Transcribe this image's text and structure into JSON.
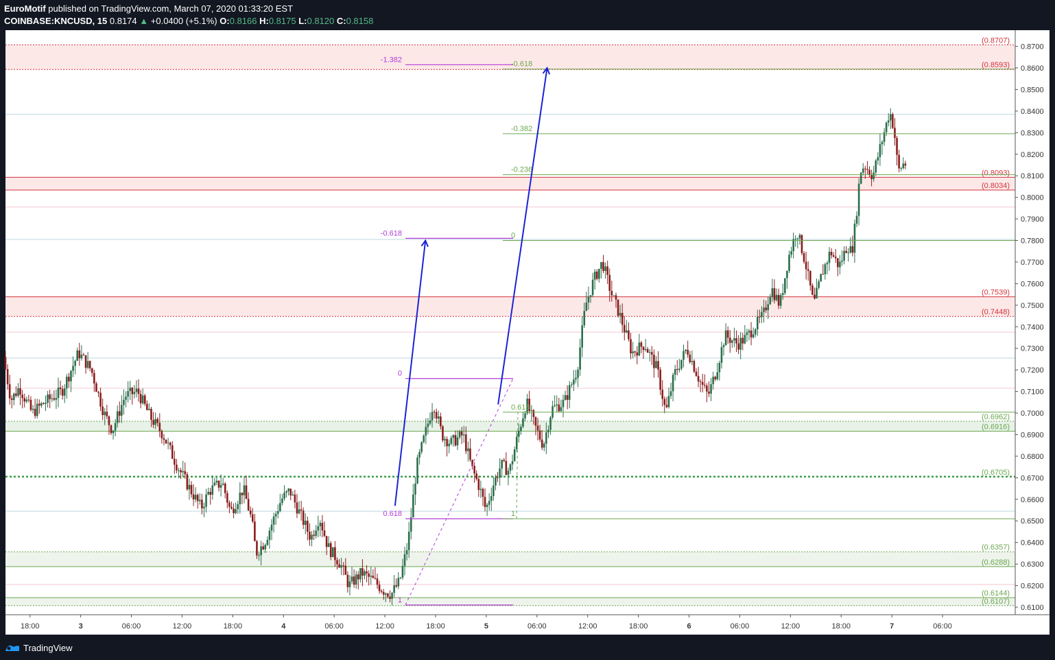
{
  "header": {
    "publisher": "EuroMotif",
    "published_text": "published on TradingView.com, March 07, 2020 01:33:20 EST",
    "symbol": "COINBASE:KNCUSD, 15",
    "last": "0.8174",
    "change_arrow": "▲",
    "change": "+0.0400 (+5.1%)",
    "o_label": "O:",
    "o_value": "0.8166",
    "h_label": "H:",
    "h_value": "0.8175",
    "l_label": "L:",
    "l_value": "0.8120",
    "c_label": "C:",
    "c_value": "0.8158"
  },
  "footer": {
    "brand": "TradingView",
    "logo_icon": "tradingview-logo-icon"
  },
  "colors": {
    "up": "#2a6e4c",
    "down": "#8b1c1c",
    "bg": "#ffffff",
    "frame": "#131722",
    "red_label": "#d1323a",
    "green_label": "#6aa84f",
    "purple": "#b23bd6",
    "blue_arrow": "#1a22d6",
    "dotted_green": "#3b9c4b"
  },
  "chart_data": {
    "type": "candlestick",
    "ylim": [
      0.6065,
      0.8775
    ],
    "y_ticks": [
      "0.8700",
      "0.8600",
      "0.8500",
      "0.8400",
      "0.8300",
      "0.8200",
      "0.8100",
      "0.8000",
      "0.7900",
      "0.7800",
      "0.7700",
      "0.7600",
      "0.7500",
      "0.7400",
      "0.7300",
      "0.7200",
      "0.7100",
      "0.7000",
      "0.6900",
      "0.6800",
      "0.6700",
      "0.6600",
      "0.6500",
      "0.6400",
      "0.6300",
      "0.6200",
      "0.6100"
    ],
    "x_ticks": [
      {
        "label": "18:00",
        "t": -6
      },
      {
        "label": "3",
        "t": 0
      },
      {
        "label": "06:00",
        "t": 6
      },
      {
        "label": "12:00",
        "t": 12
      },
      {
        "label": "18:00",
        "t": 18
      },
      {
        "label": "4",
        "t": 24
      },
      {
        "label": "06:00",
        "t": 30
      },
      {
        "label": "12:00",
        "t": 36
      },
      {
        "label": "18:00",
        "t": 42
      },
      {
        "label": "5",
        "t": 48
      },
      {
        "label": "06:00",
        "t": 54
      },
      {
        "label": "12:00",
        "t": 60
      },
      {
        "label": "18:00",
        "t": 66
      },
      {
        "label": "6",
        "t": 72
      },
      {
        "label": "06:00",
        "t": 78
      },
      {
        "label": "12:00",
        "t": 84
      },
      {
        "label": "18:00",
        "t": 90
      },
      {
        "label": "7",
        "t": 96
      },
      {
        "label": "06:00",
        "t": 102
      }
    ],
    "xlim": [
      -8.9,
      110.6
    ],
    "price_path": [
      [
        -8.9,
        0.726
      ],
      [
        -8,
        0.706
      ],
      [
        -7,
        0.712
      ],
      [
        -5.5,
        0.7
      ],
      [
        -4,
        0.705
      ],
      [
        -2,
        0.71
      ],
      [
        0,
        0.728
      ],
      [
        1.5,
        0.72
      ],
      [
        3,
        0.7
      ],
      [
        4,
        0.692
      ],
      [
        5.5,
        0.708
      ],
      [
        7,
        0.71
      ],
      [
        8.5,
        0.698
      ],
      [
        10,
        0.69
      ],
      [
        11.5,
        0.677
      ],
      [
        13,
        0.666
      ],
      [
        14.5,
        0.656
      ],
      [
        15.5,
        0.664
      ],
      [
        17,
        0.668
      ],
      [
        18,
        0.654
      ],
      [
        19.5,
        0.665
      ],
      [
        20.5,
        0.65
      ],
      [
        21,
        0.635
      ],
      [
        22,
        0.64
      ],
      [
        23,
        0.65
      ],
      [
        24,
        0.66
      ],
      [
        25,
        0.664
      ],
      [
        26,
        0.655
      ],
      [
        27.5,
        0.642
      ],
      [
        28.5,
        0.652
      ],
      [
        29.5,
        0.638
      ],
      [
        31,
        0.63
      ],
      [
        32,
        0.62
      ],
      [
        33.5,
        0.626
      ],
      [
        35,
        0.622
      ],
      [
        36,
        0.618
      ],
      [
        37,
        0.616
      ],
      [
        38,
        0.622
      ],
      [
        39,
        0.64
      ],
      [
        40,
        0.675
      ],
      [
        41,
        0.69
      ],
      [
        42,
        0.705
      ],
      [
        43,
        0.69
      ],
      [
        44,
        0.686
      ],
      [
        45.5,
        0.69
      ],
      [
        46.5,
        0.675
      ],
      [
        47.5,
        0.665
      ],
      [
        48.2,
        0.655
      ],
      [
        49,
        0.666
      ],
      [
        50,
        0.676
      ],
      [
        51,
        0.673
      ],
      [
        52,
        0.69
      ],
      [
        53,
        0.705
      ],
      [
        54,
        0.694
      ],
      [
        55,
        0.685
      ],
      [
        56,
        0.702
      ],
      [
        57.5,
        0.705
      ],
      [
        59,
        0.72
      ],
      [
        60,
        0.75
      ],
      [
        61,
        0.762
      ],
      [
        62,
        0.77
      ],
      [
        63,
        0.756
      ],
      [
        64,
        0.746
      ],
      [
        65.5,
        0.728
      ],
      [
        67,
        0.732
      ],
      [
        68.5,
        0.72
      ],
      [
        69.5,
        0.7
      ],
      [
        70.5,
        0.718
      ],
      [
        72,
        0.73
      ],
      [
        73.5,
        0.715
      ],
      [
        74.5,
        0.708
      ],
      [
        75.5,
        0.72
      ],
      [
        76.5,
        0.736
      ],
      [
        78,
        0.732
      ],
      [
        79,
        0.735
      ],
      [
        80,
        0.74
      ],
      [
        81,
        0.745
      ],
      [
        82,
        0.758
      ],
      [
        83,
        0.75
      ],
      [
        84,
        0.772
      ],
      [
        85,
        0.785
      ],
      [
        86,
        0.77
      ],
      [
        87,
        0.75
      ],
      [
        88,
        0.765
      ],
      [
        89,
        0.775
      ],
      [
        90,
        0.768
      ],
      [
        91,
        0.778
      ],
      [
        91.5,
        0.774
      ],
      [
        92,
        0.79
      ],
      [
        92.5,
        0.812
      ],
      [
        93,
        0.815
      ],
      [
        94,
        0.81
      ],
      [
        95,
        0.825
      ],
      [
        96,
        0.84
      ],
      [
        96.5,
        0.832
      ],
      [
        97,
        0.812
      ],
      [
        97.6,
        0.8155
      ]
    ],
    "levels": [
      {
        "label": "(0.8707)",
        "y": 0.8707,
        "color": "red",
        "style": "dotted"
      },
      {
        "label": "(0.8593)",
        "y": 0.8593,
        "color": "red",
        "style": "dotted"
      },
      {
        "label": "(0.8093)",
        "y": 0.8093,
        "color": "red",
        "style": "solid"
      },
      {
        "label": "(0.8034)",
        "y": 0.8034,
        "color": "red",
        "style": "solid"
      },
      {
        "label": "(0.7539)",
        "y": 0.7539,
        "color": "red",
        "style": "solid"
      },
      {
        "label": "(0.7448)",
        "y": 0.7448,
        "color": "red",
        "style": "dotted"
      },
      {
        "label": "(0.6962)",
        "y": 0.6962,
        "color": "green",
        "style": "dotted"
      },
      {
        "label": "(0.6916)",
        "y": 0.6916,
        "color": "green",
        "style": "solid"
      },
      {
        "label": "(0.6705)",
        "y": 0.6705,
        "color": "green",
        "style": "dotted-bold"
      },
      {
        "label": "(0.6357)",
        "y": 0.6357,
        "color": "green",
        "style": "dotted"
      },
      {
        "label": "(0.6288)",
        "y": 0.6288,
        "color": "green",
        "style": "solid"
      },
      {
        "label": "(0.6144)",
        "y": 0.6144,
        "color": "green",
        "style": "solid"
      },
      {
        "label": "(0.6107)",
        "y": 0.6107,
        "color": "green",
        "style": "dotted"
      }
    ],
    "fib_purple": [
      {
        "label": "-1.382",
        "y": 0.8615
      },
      {
        "label": "-0.618",
        "y": 0.781
      },
      {
        "label": "0",
        "y": 0.716
      },
      {
        "label": "0.618",
        "y": 0.651
      },
      {
        "label": "1",
        "y": 0.611
      }
    ],
    "fib_green": [
      {
        "label": "-0.618",
        "y": 0.8595
      },
      {
        "label": "-0.382",
        "y": 0.8295
      },
      {
        "label": "-0.236",
        "y": 0.8105
      },
      {
        "label": "0",
        "y": 0.78
      },
      {
        "label": "0.618",
        "y": 0.7004
      },
      {
        "label": "1",
        "y": 0.651
      }
    ]
  }
}
